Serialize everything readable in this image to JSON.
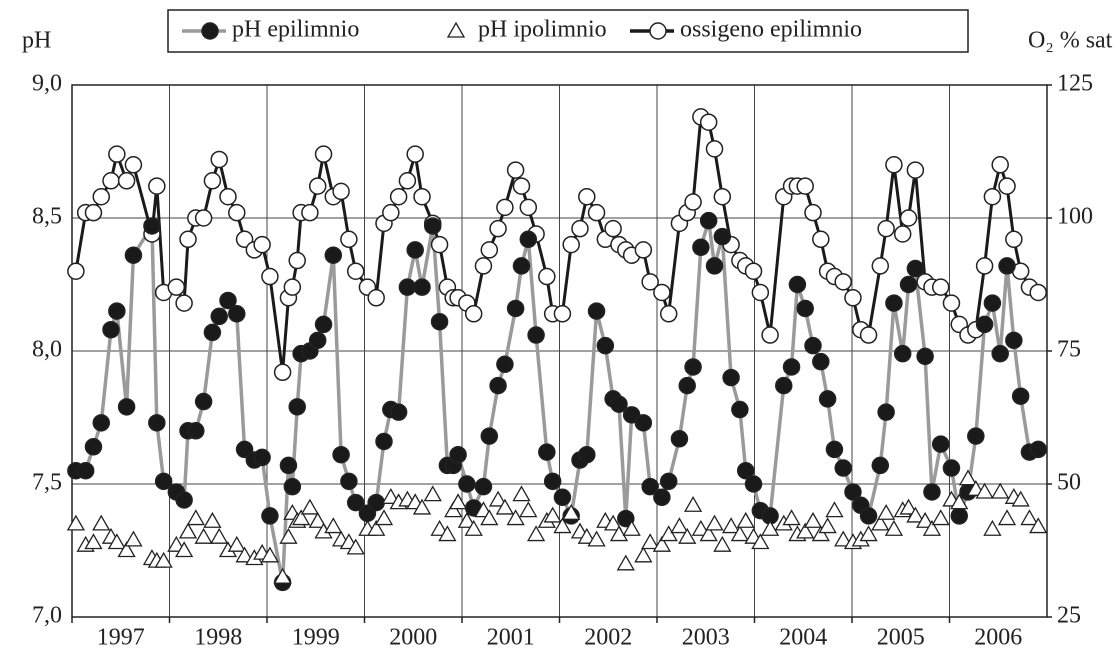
{
  "chart_data": {
    "type": "line",
    "y_label": "pH",
    "y2_label": "O₂ % sat",
    "xlim": [
      1997,
      2007
    ],
    "xticks": [
      1997,
      1998,
      1999,
      2000,
      2001,
      2002,
      2003,
      2004,
      2005,
      2006
    ],
    "ylim": [
      7,
      9
    ],
    "yticks": [
      {
        "value": 7,
        "label": "7,0"
      },
      {
        "value": 7.5,
        "label": "7,5"
      },
      {
        "value": 8,
        "label": "8,0"
      },
      {
        "value": 8.5,
        "label": "8,5"
      },
      {
        "value": 9,
        "label": "9,0"
      }
    ],
    "y2lim": [
      25,
      125
    ],
    "y2ticks": [
      25,
      50,
      75,
      100,
      125
    ],
    "grid": true,
    "legend": "top",
    "x": [
      1997.04,
      1997.14,
      1997.22,
      1997.3,
      1997.4,
      1997.46,
      1997.56,
      1997.63,
      1997.82,
      1997.87,
      1997.94,
      1998.07,
      1998.15,
      1998.19,
      1998.27,
      1998.35,
      1998.44,
      1998.51,
      1998.6,
      1998.69,
      1998.77,
      1998.87,
      1998.95,
      1999.03,
      1999.16,
      1999.22,
      1999.26,
      1999.31,
      1999.35,
      1999.44,
      1999.52,
      1999.58,
      1999.68,
      1999.76,
      1999.84,
      1999.91,
      2000.03,
      2000.12,
      2000.2,
      2000.27,
      2000.35,
      2000.44,
      2000.52,
      2000.59,
      2000.7,
      2000.77,
      2000.85,
      2000.91,
      2000.96,
      2001.05,
      2001.12,
      2001.22,
      2001.28,
      2001.37,
      2001.44,
      2001.55,
      2001.61,
      2001.68,
      2001.76,
      2001.87,
      2001.93,
      2002.03,
      2002.12,
      2002.21,
      2002.28,
      2002.38,
      2002.47,
      2002.55,
      2002.61,
      2002.68,
      2002.74,
      2002.86,
      2002.93,
      2003.05,
      2003.12,
      2003.23,
      2003.31,
      2003.37,
      2003.45,
      2003.53,
      2003.59,
      2003.67,
      2003.76,
      2003.85,
      2003.91,
      2003.99,
      2004.06,
      2004.16,
      2004.3,
      2004.38,
      2004.44,
      2004.52,
      2004.6,
      2004.68,
      2004.75,
      2004.82,
      2004.91,
      2005.01,
      2005.09,
      2005.17,
      2005.29,
      2005.35,
      2005.43,
      2005.52,
      2005.58,
      2005.65,
      2005.75,
      2005.82,
      2005.91,
      2006.02,
      2006.1,
      2006.19,
      2006.27,
      2006.36,
      2006.44,
      2006.52,
      2006.59,
      2006.66,
      2006.73,
      2006.82,
      2006.91
    ],
    "series": [
      {
        "name": "pH epilimnio",
        "color": "#9a9a9a",
        "marker": "circle",
        "marker_fill": "#1a1a1a",
        "line": true,
        "axis": "y",
        "values": [
          7.55,
          7.55,
          7.64,
          7.73,
          8.08,
          8.15,
          7.79,
          8.36,
          8.47,
          7.73,
          7.51,
          7.47,
          7.44,
          7.7,
          7.7,
          7.81,
          8.07,
          8.13,
          8.19,
          8.14,
          7.63,
          7.59,
          7.6,
          7.38,
          7.13,
          7.57,
          7.49,
          7.79,
          7.99,
          8.0,
          8.04,
          8.1,
          8.36,
          7.61,
          7.51,
          7.43,
          7.39,
          7.43,
          7.66,
          7.78,
          7.77,
          8.24,
          8.38,
          8.24,
          8.47,
          8.11,
          7.57,
          7.57,
          7.61,
          7.5,
          7.41,
          7.49,
          7.68,
          7.87,
          7.95,
          8.16,
          8.32,
          8.42,
          8.06,
          7.62,
          7.51,
          7.45,
          7.38,
          7.59,
          7.61,
          8.15,
          8.02,
          7.82,
          7.8,
          7.37,
          7.76,
          7.73,
          7.49,
          7.45,
          7.51,
          7.67,
          7.87,
          7.94,
          8.39,
          8.49,
          8.32,
          8.43,
          7.9,
          7.78,
          7.55,
          7.5,
          7.4,
          7.38,
          7.87,
          7.94,
          8.25,
          8.16,
          8.02,
          7.96,
          7.82,
          7.63,
          7.56,
          7.47,
          7.42,
          7.38,
          7.57,
          7.77,
          8.18,
          7.99,
          8.25,
          8.31,
          7.98,
          7.47,
          7.65,
          7.56,
          7.38,
          7.47,
          7.68,
          8.1,
          8.18,
          7.99,
          8.32,
          8.04,
          7.83,
          7.62,
          7.63
        ]
      },
      {
        "name": "pH ipolimnio",
        "color": "#1a1a1a",
        "marker": "triangle",
        "marker_fill": "#ffffff",
        "line": false,
        "axis": "y",
        "values": [
          7.35,
          7.27,
          7.28,
          7.35,
          7.3,
          7.28,
          7.25,
          7.29,
          7.22,
          7.21,
          7.21,
          7.27,
          7.25,
          7.32,
          7.37,
          7.3,
          7.36,
          7.3,
          7.25,
          7.27,
          7.23,
          7.22,
          7.24,
          7.23,
          7.15,
          7.3,
          7.39,
          7.36,
          7.37,
          7.41,
          7.36,
          7.32,
          7.34,
          7.29,
          7.28,
          7.26,
          7.33,
          7.33,
          7.37,
          7.45,
          7.43,
          7.44,
          7.43,
          7.41,
          7.46,
          7.33,
          7.31,
          7.4,
          7.43,
          7.36,
          7.33,
          7.4,
          7.37,
          7.44,
          7.41,
          7.37,
          7.46,
          7.4,
          7.31,
          7.36,
          7.38,
          7.34,
          7.39,
          7.32,
          7.3,
          7.29,
          7.36,
          7.35,
          7.31,
          7.2,
          7.33,
          7.23,
          7.28,
          7.27,
          7.31,
          7.34,
          7.3,
          7.42,
          7.33,
          7.31,
          7.35,
          7.27,
          7.34,
          7.31,
          7.36,
          7.3,
          7.28,
          7.33,
          7.35,
          7.37,
          7.31,
          7.32,
          7.36,
          7.31,
          7.34,
          7.4,
          7.29,
          7.28,
          7.29,
          7.31,
          7.35,
          7.39,
          7.33,
          7.4,
          7.41,
          7.38,
          7.36,
          7.33,
          7.37,
          7.44,
          7.43,
          7.52,
          7.48,
          7.47,
          7.33,
          7.47,
          7.37,
          7.45,
          7.44,
          7.37,
          7.34
        ]
      },
      {
        "name": "ossigeno epilimnio",
        "color": "#1a1a1a",
        "marker": "circle",
        "marker_fill": "#ffffff",
        "line": true,
        "axis": "y2",
        "values": [
          90,
          101,
          101,
          104,
          107,
          112,
          107,
          110,
          97,
          106,
          86,
          87,
          84,
          96,
          100,
          100,
          107,
          111,
          104,
          101,
          96,
          94,
          95,
          89,
          71,
          85,
          87,
          92,
          101,
          101,
          106,
          112,
          104,
          105,
          96,
          90,
          87,
          85,
          99,
          101,
          104,
          107,
          112,
          104,
          99,
          95,
          87,
          85,
          85,
          84,
          82,
          91,
          94,
          98,
          102,
          109,
          106,
          102,
          97,
          89,
          82,
          82,
          95,
          98,
          104,
          101,
          96,
          98,
          95,
          94,
          93,
          94,
          88,
          86,
          82,
          99,
          101,
          103,
          119,
          118,
          113,
          104,
          95,
          92,
          91,
          90,
          86,
          78,
          104,
          106,
          106,
          106,
          101,
          96,
          90,
          89,
          88,
          85,
          79,
          78,
          91,
          98,
          110,
          97,
          100,
          109,
          88,
          87,
          87,
          84,
          80,
          78,
          79,
          91,
          104,
          110,
          106,
          96,
          90,
          87,
          86
        ]
      }
    ]
  }
}
